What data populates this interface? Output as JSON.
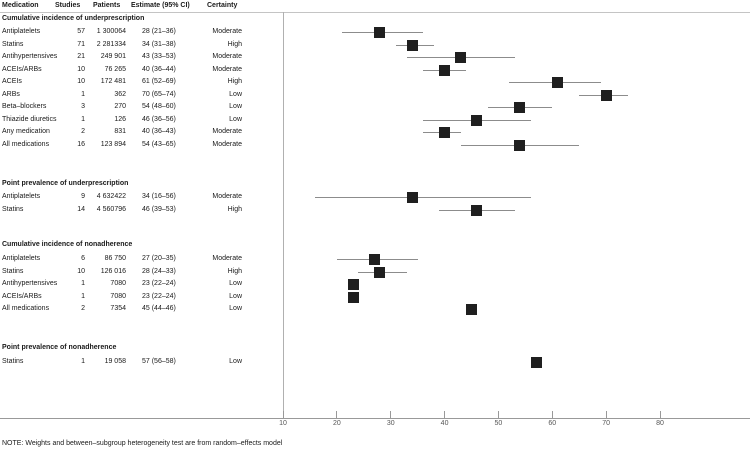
{
  "table": {
    "columns": [
      "Medication",
      "Studies",
      "Patients",
      "Estimate (95% CI)",
      "Certainty"
    ]
  },
  "note": "NOTE: Weights and between–subgroup heterogeneity test are from random–effects model",
  "colors": {
    "square": "#1f1f1f",
    "ci_line": "#8c8c8c",
    "axis": "#999999",
    "top_rule": "#c4c4c4",
    "left_border": "#b0b0b0",
    "tick_label": "#555555"
  },
  "chart_data": {
    "type": "scatter",
    "variant": "forest-plot",
    "title": "",
    "xlabel": "",
    "x_ticks": [
      10,
      20,
      30,
      40,
      50,
      60,
      70,
      80
    ],
    "xlim": [
      10,
      80
    ],
    "grid": false,
    "legend": "none",
    "sections": [
      {
        "title": "Cumulative incidence of underprescription",
        "rows": [
          {
            "medication": "Antiplatelets",
            "studies": "57",
            "patients": "1 300064",
            "estimate": 28,
            "ci": [
              21,
              36
            ],
            "estimate_label": "28 (21–36)",
            "certainty": "Moderate"
          },
          {
            "medication": "Statins",
            "studies": "71",
            "patients": "2 281334",
            "estimate": 34,
            "ci": [
              31,
              38
            ],
            "estimate_label": "34 (31–38)",
            "certainty": "High"
          },
          {
            "medication": "Antihypertensives",
            "studies": "21",
            "patients": "249 901",
            "estimate": 43,
            "ci": [
              33,
              53
            ],
            "estimate_label": "43 (33–53)",
            "certainty": "Moderate"
          },
          {
            "medication": "ACEIs/ARBs",
            "studies": "10",
            "patients": "76 265",
            "estimate": 40,
            "ci": [
              36,
              44
            ],
            "estimate_label": "40 (36–44)",
            "certainty": "Moderate"
          },
          {
            "medication": "ACEIs",
            "studies": "10",
            "patients": "172 481",
            "estimate": 61,
            "ci": [
              52,
              69
            ],
            "estimate_label": "61 (52–69)",
            "certainty": "High"
          },
          {
            "medication": "ARBs",
            "studies": "1",
            "patients": "362",
            "estimate": 70,
            "ci": [
              65,
              74
            ],
            "estimate_label": "70 (65–74)",
            "certainty": "Low"
          },
          {
            "medication": "Beta–blockers",
            "studies": "3",
            "patients": "270",
            "estimate": 54,
            "ci": [
              48,
              60
            ],
            "estimate_label": "54 (48–60)",
            "certainty": "Low"
          },
          {
            "medication": "Thiazide diuretics",
            "studies": "1",
            "patients": "126",
            "estimate": 46,
            "ci": [
              36,
              56
            ],
            "estimate_label": "46 (36–56)",
            "certainty": "Low"
          },
          {
            "medication": "Any medication",
            "studies": "2",
            "patients": "831",
            "estimate": 40,
            "ci": [
              36,
              43
            ],
            "estimate_label": "40 (36–43)",
            "certainty": "Moderate"
          },
          {
            "medication": "All medications",
            "studies": "16",
            "patients": "123 894",
            "estimate": 54,
            "ci": [
              43,
              65
            ],
            "estimate_label": "54 (43–65)",
            "certainty": "Moderate"
          }
        ]
      },
      {
        "title": "Point prevalence of underprescription",
        "rows": [
          {
            "medication": "Antiplatelets",
            "studies": "9",
            "patients": "4 632422",
            "estimate": 34,
            "ci": [
              16,
              56
            ],
            "estimate_label": "34 (16–56)",
            "certainty": "Moderate"
          },
          {
            "medication": "Statins",
            "studies": "14",
            "patients": "4 560796",
            "estimate": 46,
            "ci": [
              39,
              53
            ],
            "estimate_label": "46 (39–53)",
            "certainty": "High"
          }
        ]
      },
      {
        "title": "Cumulative incidence of nonadherence",
        "rows": [
          {
            "medication": "Antiplatelets",
            "studies": "6",
            "patients": "86 750",
            "estimate": 27,
            "ci": [
              20,
              35
            ],
            "estimate_label": "27 (20–35)",
            "certainty": "Moderate"
          },
          {
            "medication": "Statins",
            "studies": "10",
            "patients": "126 016",
            "estimate": 28,
            "ci": [
              24,
              33
            ],
            "estimate_label": "28 (24–33)",
            "certainty": "High"
          },
          {
            "medication": "Antihypertensives",
            "studies": "1",
            "patients": "7080",
            "estimate": 23,
            "ci": [
              22,
              24
            ],
            "estimate_label": "23 (22–24)",
            "certainty": "Low"
          },
          {
            "medication": "ACEIs/ARBs",
            "studies": "1",
            "patients": "7080",
            "estimate": 23,
            "ci": [
              22,
              24
            ],
            "estimate_label": "23 (22–24)",
            "certainty": "Low"
          },
          {
            "medication": "All medications",
            "studies": "2",
            "patients": "7354",
            "estimate": 45,
            "ci": [
              44,
              46
            ],
            "estimate_label": "45 (44–46)",
            "certainty": "Low"
          }
        ]
      },
      {
        "title": "Point prevalence of nonadherence",
        "rows": [
          {
            "medication": "Statins",
            "studies": "1",
            "patients": "19 058",
            "estimate": 57,
            "ci": [
              56,
              58
            ],
            "estimate_label": "57 (56–58)",
            "certainty": "Low"
          }
        ]
      }
    ]
  }
}
